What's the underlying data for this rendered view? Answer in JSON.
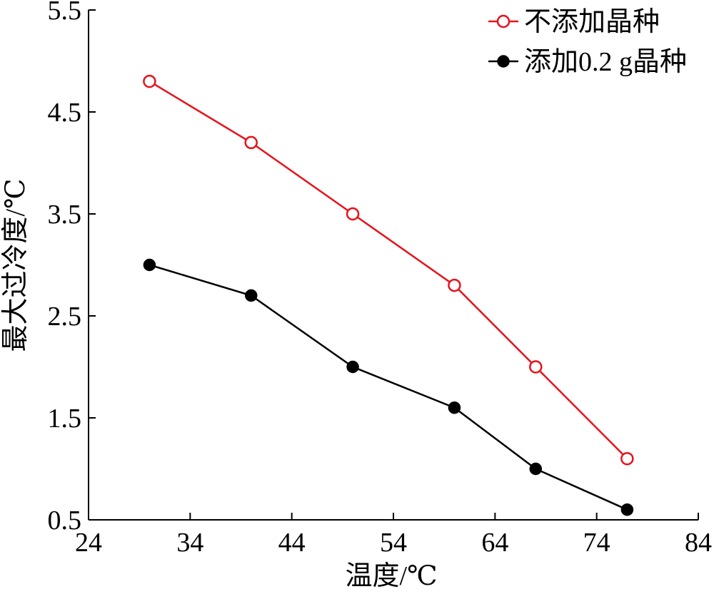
{
  "chart_data": {
    "type": "line",
    "title": "",
    "xlabel": "温度/℃",
    "ylabel": "最大过冷度/℃",
    "xlim": [
      24,
      84
    ],
    "ylim": [
      0.5,
      5.5
    ],
    "xticks": [
      24,
      34,
      44,
      54,
      64,
      74,
      84
    ],
    "yticks": [
      0.5,
      1.5,
      2.5,
      3.5,
      4.5,
      5.5
    ],
    "xtick_labels": [
      "24",
      "34",
      "44",
      "54",
      "64",
      "74",
      "84"
    ],
    "ytick_labels": [
      "0.5",
      "1.5",
      "2.5",
      "3.5",
      "4.5",
      "5.5"
    ],
    "grid": false,
    "legend_position": "top-right",
    "series": [
      {
        "name": "不添加晶种",
        "color": "#e8121b",
        "marker": "open-circle",
        "x": [
          30,
          40,
          50,
          60,
          68,
          77
        ],
        "y": [
          4.8,
          4.2,
          3.5,
          2.8,
          2.0,
          1.1
        ]
      },
      {
        "name": "添加0.2 g晶种",
        "color": "#000000",
        "marker": "filled-circle",
        "x": [
          30,
          40,
          50,
          60,
          68,
          77
        ],
        "y": [
          3.0,
          2.7,
          2.0,
          1.6,
          1.0,
          0.6
        ]
      }
    ]
  }
}
